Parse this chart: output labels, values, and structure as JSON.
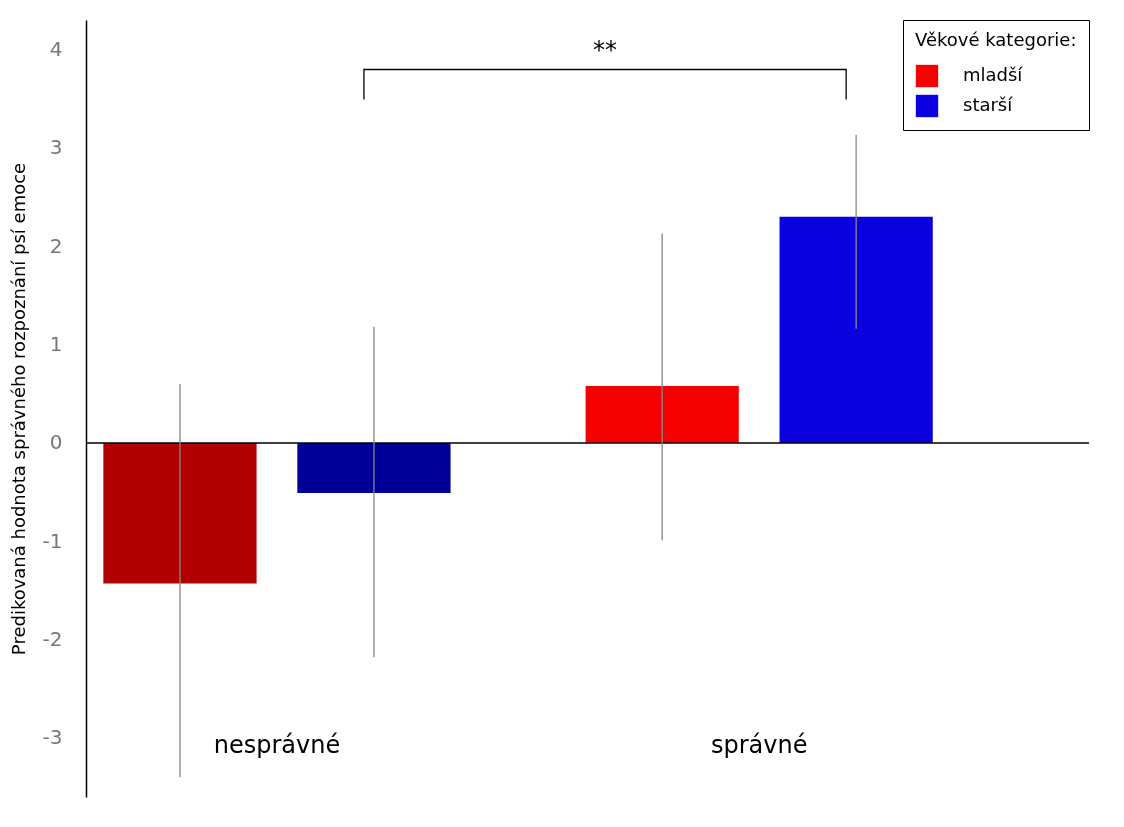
{
  "chart_data": {
    "type": "bar",
    "ylabel": "Predikovaná hodnota správného rozpoznání psí emoce",
    "legend_title": "Věkové kategorie:",
    "categories": [
      "nesprávné",
      "správné"
    ],
    "series": [
      {
        "name": "mladší",
        "color": "#f50000",
        "colors": [
          "#b00000",
          "#f50000"
        ],
        "values": [
          -1.43,
          0.58
        ],
        "errors": [
          [
            -3.4,
            0.6
          ],
          [
            -0.99,
            2.13
          ]
        ]
      },
      {
        "name": "starší",
        "color": "#0a00e0",
        "colors": [
          "#000099",
          "#0a00e0"
        ],
        "values": [
          -0.51,
          2.3
        ],
        "errors": [
          [
            -2.18,
            1.18
          ],
          [
            1.16,
            3.13
          ]
        ]
      }
    ],
    "ylim": [
      -3.6,
      4.3
    ],
    "yticks": [
      -3,
      -2,
      -1,
      0,
      1,
      2,
      3,
      4
    ],
    "grid": false,
    "legend": "top right",
    "ref_lines": [
      {
        "axis": "y",
        "value": 0,
        "color": "#000000"
      }
    ],
    "annotations": [
      "**"
    ]
  }
}
